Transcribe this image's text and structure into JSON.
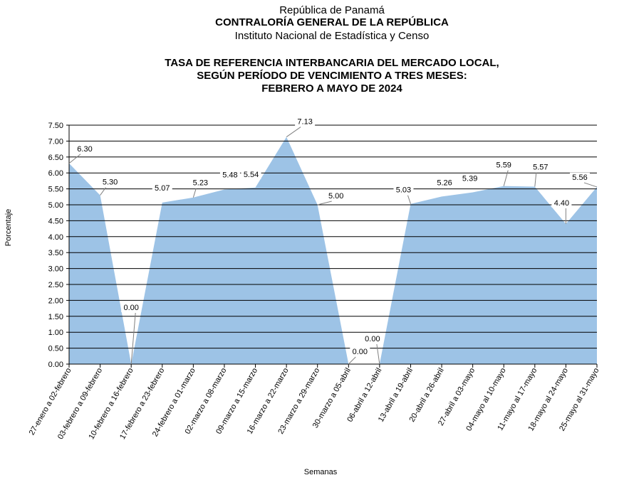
{
  "header": {
    "line1": "República de Panamá",
    "line2": "CONTRALORÍA GENERAL DE LA REPÚBLICA",
    "line3": "Instituto  Nacional  de Estadística  y  Censo"
  },
  "chart_data": {
    "type": "area",
    "title": [
      "TASA DE REFERENCIA INTERBANCARIA DEL MERCADO LOCAL,",
      "SEGÚN PERÍODO DE VENCIMIENTO A TRES MESES:",
      "FEBRERO A MAYO DE 2024"
    ],
    "xlabel": "Semanas",
    "ylabel": "Porcentaje",
    "ylim": [
      0,
      7.5
    ],
    "yticks": [
      "0.00",
      "0.50",
      "1.00",
      "1.50",
      "2.00",
      "2.50",
      "3.00",
      "3.50",
      "4.00",
      "4.50",
      "5.00",
      "5.50",
      "6.00",
      "6.50",
      "7.00",
      "7.50"
    ],
    "grid": true,
    "fill_color": "#9dc3e6",
    "categories": [
      "27-enero a 02-febrero",
      "03-febrero a 09-febrero",
      "10-febrero a 16-febrero",
      "17-febrero a 23-febrero",
      "24-febrero a 01-marzo",
      "02-marzo a 08-marzo",
      "09-marzo a 15-marzo",
      "16-marzo a 22-marzo",
      "23-marzo a 29-marzo",
      "30-marzo a 05-abril",
      "06-abril a 12-abril",
      "13-abril a 19-abril",
      "20-abril a 26-abril",
      "27-abril a 03-mayo",
      "04-mayo al 10-mayo",
      "11-mayo al 17-mayo",
      "18-mayo al 24-mayo",
      "25-mayo al 31-mayo"
    ],
    "values": [
      6.3,
      5.3,
      0.0,
      5.07,
      5.23,
      5.48,
      5.54,
      7.13,
      5.0,
      0.0,
      0.0,
      5.03,
      5.26,
      5.39,
      5.59,
      5.57,
      4.4,
      5.56
    ],
    "data_labels": [
      "6.30",
      "5.30",
      "0.00",
      "5.07",
      "5.23",
      "5.48",
      "5.54",
      "7.13",
      "5.00",
      "0.00",
      "0.00",
      "5.03",
      "5.26",
      "5.39",
      "5.59",
      "5.57",
      "4.40",
      "5.56"
    ]
  }
}
